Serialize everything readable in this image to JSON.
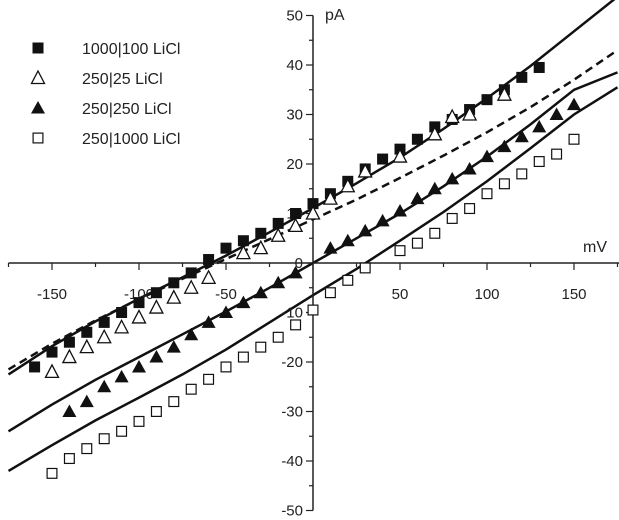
{
  "chart_data": {
    "type": "scatter",
    "xlabel": "mV",
    "ylabel": "pA",
    "xlim": [
      -175,
      178
    ],
    "ylim": [
      -50,
      50
    ],
    "xticks": [
      -150,
      -100,
      -50,
      0,
      50,
      100,
      150
    ],
    "yticks": [
      -50,
      -40,
      -30,
      -20,
      -10,
      0,
      10,
      20,
      30,
      40,
      50
    ],
    "x_tick_labels": [
      "-150",
      "-100",
      "-50",
      "0",
      "50",
      "100",
      "150"
    ],
    "y_tick_labels": [
      "-50",
      "-40",
      "-30",
      "-20",
      "-10",
      "0",
      "10",
      "20",
      "30",
      "40",
      "50"
    ],
    "grid": false,
    "legend_position": "top-left",
    "series": [
      {
        "name": "1000|100 LiCl",
        "marker": "filled-square",
        "fit": "solid",
        "x": [
          -160,
          -150,
          -140,
          -130,
          -120,
          -110,
          -100,
          -90,
          -80,
          -70,
          -60,
          -50,
          -40,
          -30,
          -20,
          -10,
          0,
          10,
          20,
          30,
          40,
          50,
          60,
          70,
          80,
          90,
          100,
          110,
          120,
          130
        ],
        "y": [
          -21,
          -18,
          -16,
          -14,
          -12,
          -10,
          -8,
          -6,
          -4,
          -2,
          0.7,
          3,
          4.5,
          6,
          8,
          10,
          12,
          14,
          16.5,
          19,
          21,
          23,
          25,
          27.5,
          29,
          31,
          33,
          35,
          37.5,
          39.5
        ]
      },
      {
        "name": "250|25 LiCl",
        "marker": "open-triangle",
        "fit": "dashed",
        "x": [
          -150,
          -140,
          -130,
          -120,
          -110,
          -100,
          -90,
          -80,
          -70,
          -60,
          -40,
          -30,
          -20,
          -10,
          0,
          10,
          20,
          30,
          50,
          70,
          80,
          90,
          110
        ],
        "y": [
          -22,
          -19,
          -17,
          -15,
          -13,
          -11,
          -9,
          -7,
          -5,
          -3,
          2,
          3,
          5.5,
          7.5,
          10,
          13,
          15.5,
          18.5,
          21.5,
          26,
          29.5,
          30,
          34
        ]
      },
      {
        "name": "250|250 LiCl",
        "marker": "filled-triangle",
        "fit": "solid",
        "x": [
          -140,
          -130,
          -120,
          -110,
          -100,
          -90,
          -80,
          -70,
          -60,
          -50,
          -40,
          -30,
          -20,
          -10,
          10,
          20,
          30,
          40,
          50,
          60,
          70,
          80,
          90,
          100,
          110,
          120,
          130,
          140,
          150
        ],
        "y": [
          -30,
          -28,
          -25,
          -23,
          -21,
          -19,
          -17,
          -14.5,
          -12,
          -10,
          -8,
          -6,
          -4,
          -2,
          3,
          4.5,
          6.5,
          8.5,
          10.5,
          13,
          15,
          17,
          19,
          21.5,
          23.5,
          25.5,
          27.5,
          30,
          32
        ]
      },
      {
        "name": "250|1000 LiCl",
        "marker": "open-square",
        "fit": "solid",
        "x": [
          -150,
          -140,
          -130,
          -120,
          -110,
          -100,
          -90,
          -80,
          -70,
          -60,
          -50,
          -40,
          -30,
          -20,
          -10,
          0,
          10,
          20,
          30,
          50,
          60,
          70,
          80,
          90,
          100,
          110,
          120,
          130,
          140,
          150
        ],
        "y": [
          -42.5,
          -39.5,
          -37.5,
          -35.5,
          -34,
          -32,
          -30,
          -28,
          -25.5,
          -23.5,
          -21,
          -19,
          -17,
          -15,
          -12.5,
          -9.5,
          -6,
          -3.5,
          -1,
          2.5,
          4,
          6,
          9,
          11,
          14,
          16,
          18,
          20.5,
          22,
          25
        ]
      }
    ],
    "fit_curves": [
      {
        "series": "1000|100 LiCl",
        "style": "solid",
        "x": [
          -175,
          -150,
          -125,
          -100,
          -75,
          -50,
          -25,
          0,
          25,
          50,
          75,
          100,
          125,
          150,
          175
        ],
        "y": [
          -22.5,
          -16.8,
          -11.8,
          -7.2,
          -2.9,
          1.5,
          6.2,
          11.1,
          16.1,
          21.3,
          27.1,
          33.3,
          39.8,
          46.8,
          53.8
        ]
      },
      {
        "series": "250|25 LiCl",
        "style": "dashed",
        "x": [
          -175,
          -150,
          -125,
          -100,
          -75,
          -50,
          -25,
          0,
          25,
          50,
          75,
          100,
          125,
          150,
          175
        ],
        "y": [
          -21.5,
          -16.3,
          -11.6,
          -7.3,
          -3.2,
          0.8,
          4.8,
          8.8,
          12.8,
          17.2,
          21.7,
          26.4,
          31.5,
          37.0,
          43.0
        ]
      },
      {
        "series": "250|250 LiCl",
        "style": "solid",
        "x": [
          -175,
          -150,
          -125,
          -100,
          -75,
          -50,
          -25,
          0,
          25,
          50,
          75,
          100,
          125,
          150,
          175
        ],
        "y": [
          -34.0,
          -28.6,
          -23.6,
          -19.0,
          -14.4,
          -9.8,
          -5.0,
          0,
          5.0,
          10.0,
          15.5,
          21.5,
          28.0,
          35.0,
          38.5
        ]
      },
      {
        "series": "250|1000 LiCl",
        "style": "solid",
        "x": [
          -175,
          -150,
          -125,
          -100,
          -75,
          -50,
          -25,
          0,
          25,
          50,
          75,
          100,
          125,
          150,
          175
        ],
        "y": [
          -42.0,
          -36.8,
          -31.8,
          -27.2,
          -22.5,
          -17.5,
          -12.0,
          -6.5,
          -1.2,
          4.5,
          10.3,
          16.5,
          23.2,
          30.0,
          35.5
        ]
      }
    ]
  }
}
